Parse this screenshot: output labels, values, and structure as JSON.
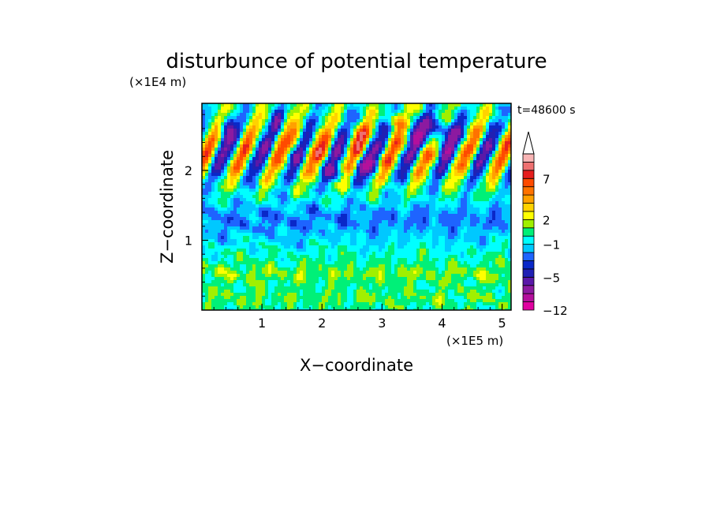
{
  "chart_data": {
    "type": "heatmap",
    "title": "disturbunce of potential temperature",
    "xlabel": "X−coordinate",
    "ylabel": "Z−coordinate",
    "x_unit": "(×1E5 m)",
    "y_unit": "(×1E4 m)",
    "time_label": "t=48600 s",
    "x_range": [
      0,
      5.15
    ],
    "y_range": [
      0,
      2.96
    ],
    "x_ticks": [
      {
        "value": 1,
        "label": "1"
      },
      {
        "value": 2,
        "label": "2"
      },
      {
        "value": 3,
        "label": "3"
      },
      {
        "value": 4,
        "label": "4"
      },
      {
        "value": 5,
        "label": "5"
      }
    ],
    "y_ticks": [
      {
        "value": 1,
        "label": "1"
      },
      {
        "value": 2,
        "label": "2"
      }
    ],
    "colorbar": {
      "levels": [
        -12,
        -10,
        -8,
        -6,
        -5,
        -4,
        -3,
        -2,
        -1,
        0,
        1,
        2,
        3,
        4,
        5,
        6,
        7,
        8,
        9,
        10
      ],
      "colors": [
        "#e000a0",
        "#b4109c",
        "#8c1aa0",
        "#5a18a8",
        "#2020b4",
        "#0a28c8",
        "#1e64ff",
        "#00c8ff",
        "#00ffff",
        "#00f078",
        "#a0f000",
        "#ffff00",
        "#ffd200",
        "#ffa000",
        "#ff7200",
        "#ff4a00",
        "#e61e1e",
        "#ee7070",
        "#f8b4b4"
      ],
      "extend": "max",
      "labels": [
        {
          "value": -12,
          "label": "−12"
        },
        {
          "value": -5,
          "label": "−5"
        },
        {
          "value": -1,
          "label": "−1"
        },
        {
          "value": 2,
          "label": "2"
        },
        {
          "value": 7,
          "label": "7"
        }
      ]
    },
    "grid": false
  }
}
